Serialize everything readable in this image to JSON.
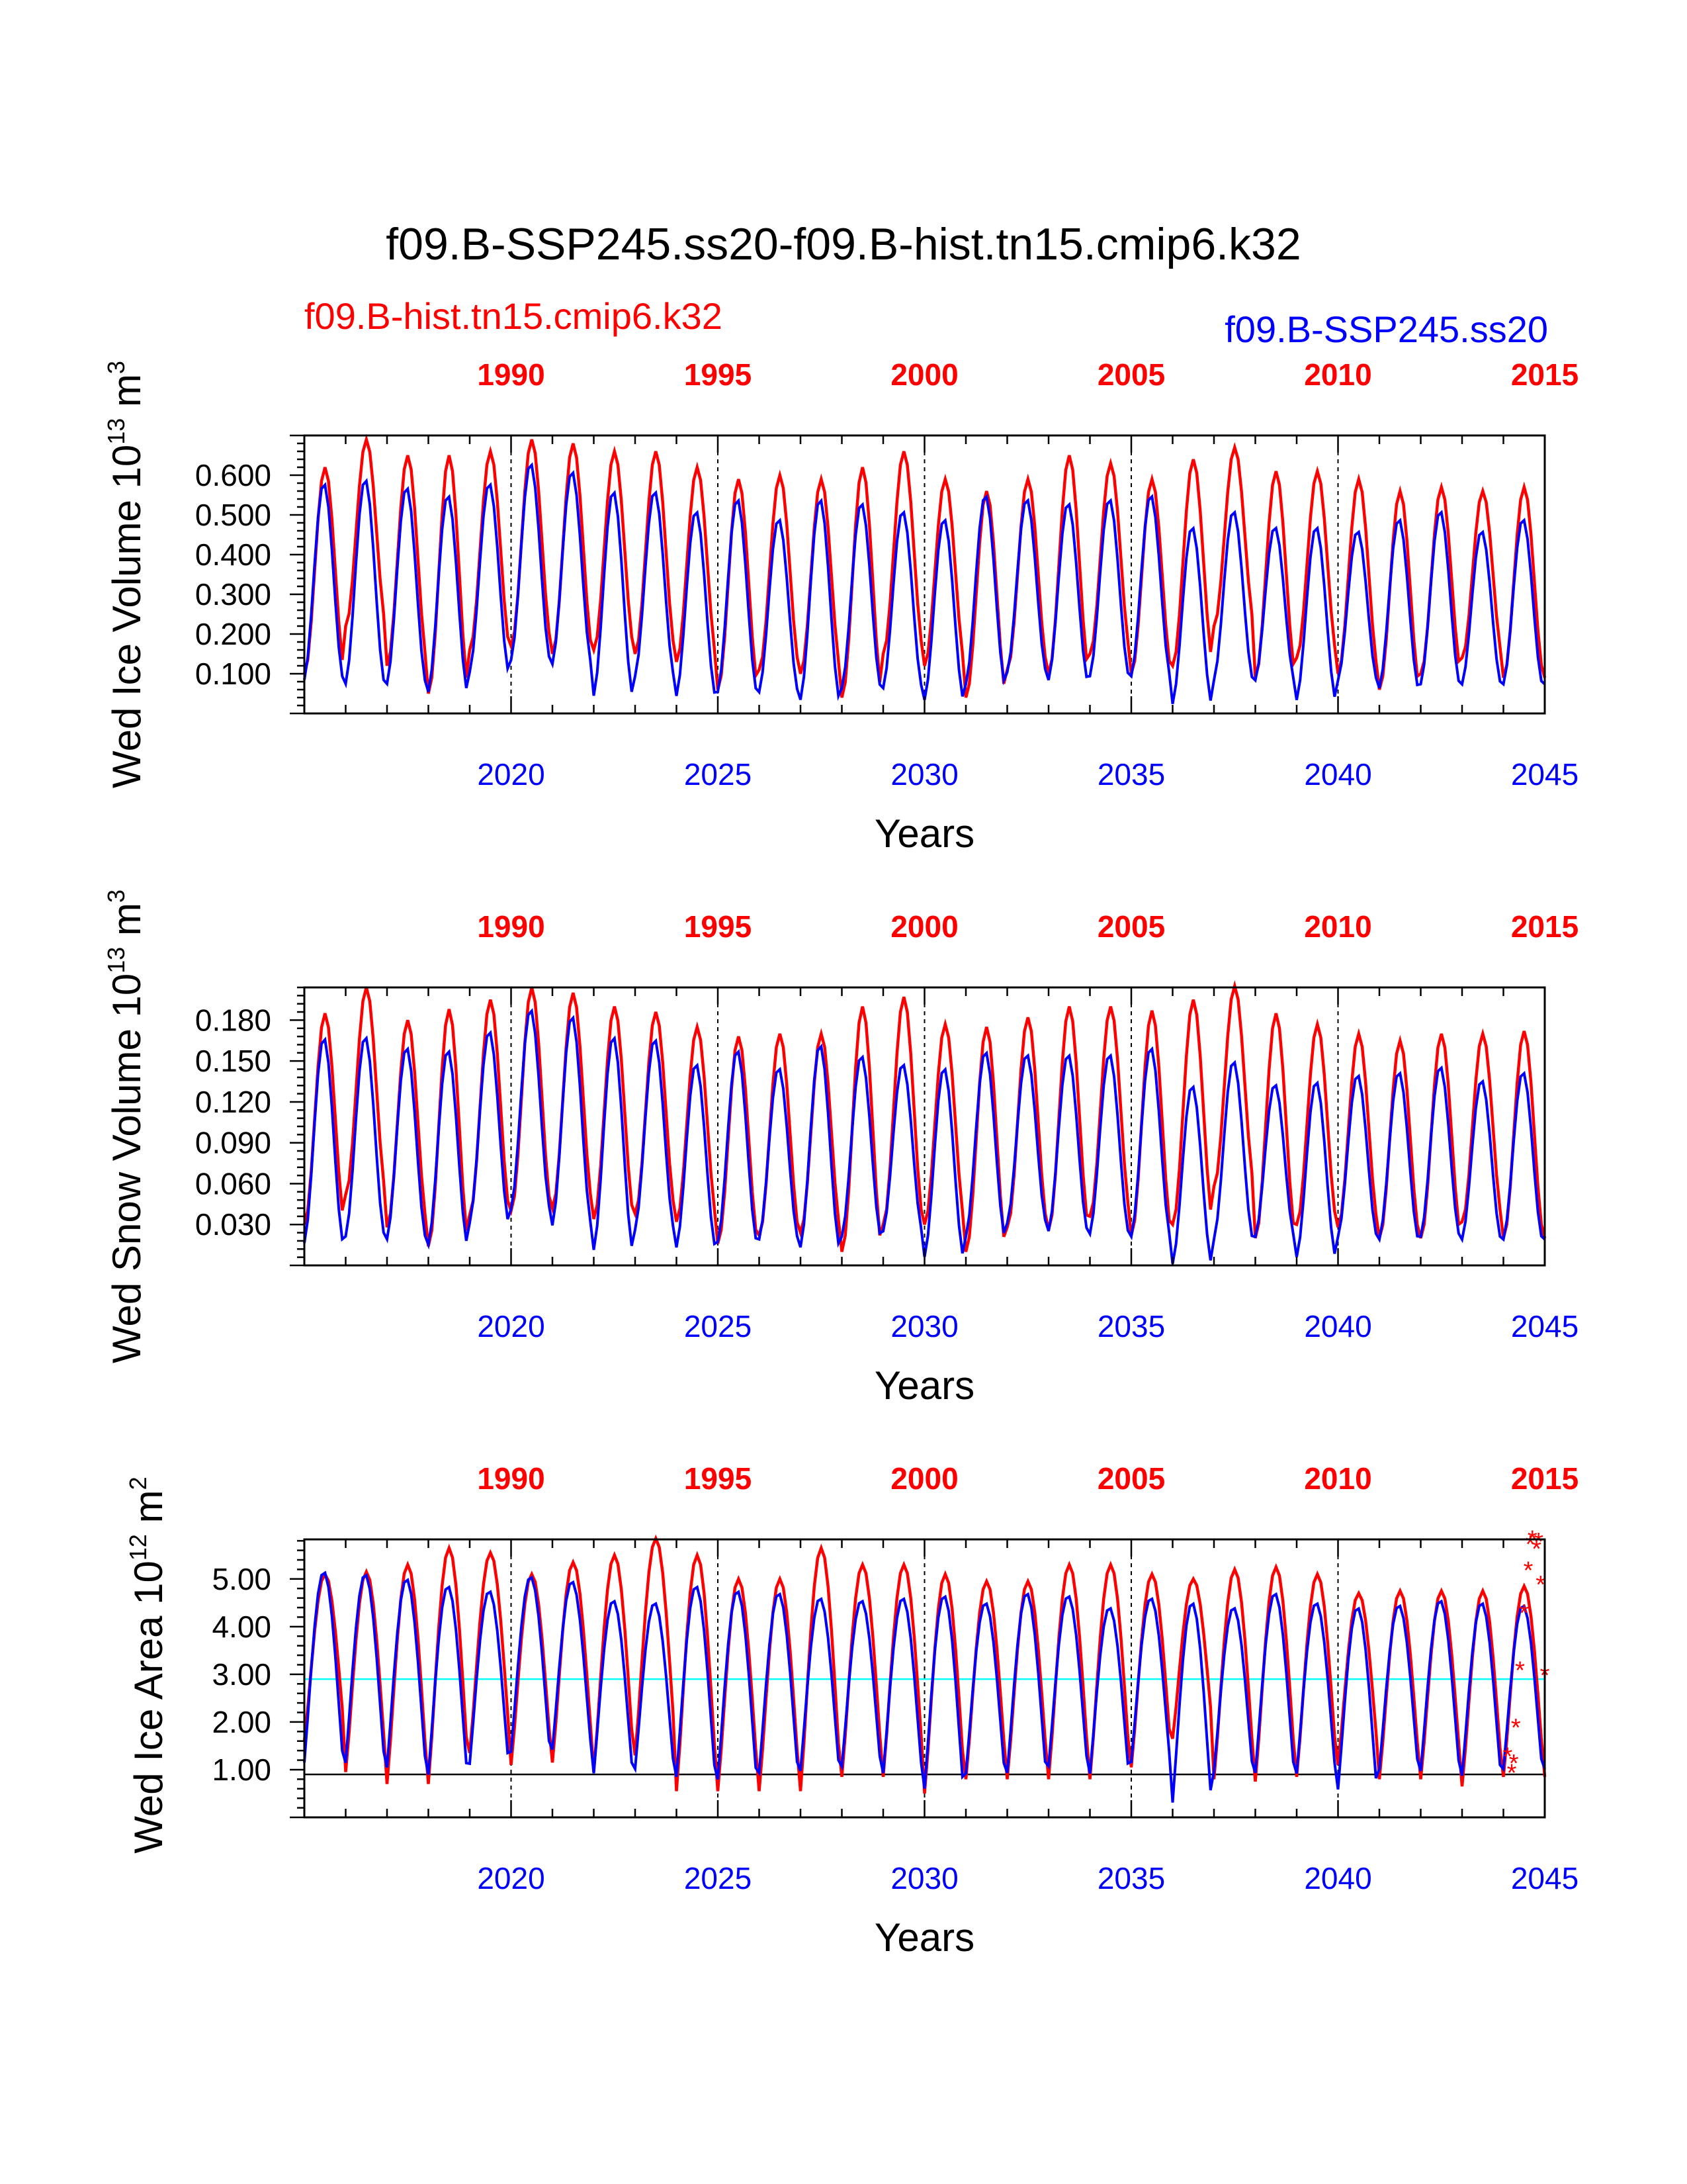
{
  "title": "f09.B-SSP245.ss20-f09.B-hist.tn15.cmip6.k32",
  "legend": {
    "left": {
      "text": "f09.B-hist.tn15.cmip6.k32",
      "color": "#ff0000"
    },
    "right": {
      "text": "f09.B-SSP245.ss20",
      "color": "#0000ff"
    }
  },
  "colors": {
    "red_series": "#ff0000",
    "blue_series": "#0000ff",
    "cyan_line": "#00ffff",
    "black_line": "#000000"
  },
  "chart_data": [
    {
      "type": "line",
      "ylabel_main": "Wed Ice Volume 10",
      "ylabel_exp": "13",
      "ylabel_unit": " m",
      "ylabel_unit_exp": "3",
      "xlabel": "Years",
      "xlim_bottom": [
        2015,
        2045
      ],
      "xlim_top": [
        1985,
        2015
      ],
      "bottom_ticks": [
        "2020",
        "2025",
        "2030",
        "2035",
        "2040",
        "2045"
      ],
      "top_ticks": [
        "1990",
        "1995",
        "2000",
        "2005",
        "2010",
        "2015"
      ],
      "ylim": [
        0.0,
        0.7
      ],
      "yticks": [
        "0.100",
        "0.200",
        "0.300",
        "0.400",
        "0.500",
        "0.600"
      ],
      "ytick_values": [
        0.1,
        0.2,
        0.3,
        0.4,
        0.5,
        0.6
      ],
      "grid": false,
      "season_shape": "pulse",
      "series": [
        {
          "name": "f09.B-hist.tn15.cmip6.k32",
          "color": "#ff0000",
          "annual_max": [
            0.62,
            0.69,
            0.65,
            0.65,
            0.66,
            0.69,
            0.68,
            0.66,
            0.66,
            0.62,
            0.59,
            0.6,
            0.59,
            0.62,
            0.66,
            0.59,
            0.56,
            0.59,
            0.65,
            0.63,
            0.59,
            0.64,
            0.67,
            0.61,
            0.61,
            0.59,
            0.56,
            0.57,
            0.56,
            0.57
          ],
          "annual_min": [
            0.1,
            0.22,
            0.12,
            0.05,
            0.16,
            0.17,
            0.15,
            0.16,
            0.15,
            0.13,
            0.06,
            0.11,
            0.1,
            0.04,
            0.15,
            0.12,
            0.04,
            0.11,
            0.1,
            0.15,
            0.1,
            0.12,
            0.22,
            0.09,
            0.14,
            0.1,
            0.06,
            0.1,
            0.14,
            0.09
          ]
        },
        {
          "name": "f09.B-SSP245.ss20",
          "color": "#0000ff",
          "annual_max": [
            0.58,
            0.59,
            0.57,
            0.55,
            0.58,
            0.63,
            0.61,
            0.56,
            0.56,
            0.51,
            0.54,
            0.49,
            0.54,
            0.53,
            0.51,
            0.49,
            0.55,
            0.54,
            0.53,
            0.54,
            0.55,
            0.47,
            0.51,
            0.47,
            0.47,
            0.46,
            0.49,
            0.51,
            0.46,
            0.49
          ],
          "annual_min": [
            0.08,
            0.07,
            0.07,
            0.05,
            0.1,
            0.13,
            0.12,
            0.04,
            0.09,
            0.04,
            0.05,
            0.05,
            0.03,
            0.06,
            0.06,
            0.03,
            0.07,
            0.1,
            0.08,
            0.09,
            0.09,
            0.02,
            0.08,
            0.08,
            0.03,
            0.08,
            0.06,
            0.07,
            0.07,
            0.07
          ]
        }
      ],
      "markers": []
    },
    {
      "type": "line",
      "ylabel_main": "Wed Snow Volume 10",
      "ylabel_exp": "13",
      "ylabel_unit": " m",
      "ylabel_unit_exp": "3",
      "xlabel": "Years",
      "xlim_bottom": [
        2015,
        2045
      ],
      "xlim_top": [
        1985,
        2015
      ],
      "bottom_ticks": [
        "2020",
        "2025",
        "2030",
        "2035",
        "2040",
        "2045"
      ],
      "top_ticks": [
        "1990",
        "1995",
        "2000",
        "2005",
        "2010",
        "2015"
      ],
      "ylim": [
        0.0,
        0.204
      ],
      "yticks": [
        "0.030",
        "0.060",
        "0.090",
        "0.120",
        "0.150",
        "0.180"
      ],
      "ytick_values": [
        0.03,
        0.06,
        0.09,
        0.12,
        0.15,
        0.18
      ],
      "grid": false,
      "season_shape": "pulse",
      "series": [
        {
          "name": "f09.B-hist.tn15.cmip6.k32",
          "color": "#ff0000",
          "annual_max": [
            0.185,
            0.204,
            0.18,
            0.188,
            0.195,
            0.204,
            0.2,
            0.19,
            0.186,
            0.175,
            0.168,
            0.17,
            0.17,
            0.19,
            0.197,
            0.177,
            0.175,
            0.182,
            0.19,
            0.19,
            0.187,
            0.195,
            0.205,
            0.185,
            0.177,
            0.17,
            0.165,
            0.17,
            0.17,
            0.172
          ],
          "annual_min": [
            0.03,
            0.052,
            0.028,
            0.014,
            0.037,
            0.04,
            0.042,
            0.034,
            0.038,
            0.032,
            0.016,
            0.022,
            0.024,
            0.01,
            0.03,
            0.03,
            0.01,
            0.028,
            0.026,
            0.036,
            0.022,
            0.03,
            0.058,
            0.02,
            0.03,
            0.028,
            0.02,
            0.02,
            0.032,
            0.02
          ]
        },
        {
          "name": "f09.B-SSP245.ss20",
          "color": "#0000ff",
          "annual_max": [
            0.167,
            0.168,
            0.16,
            0.158,
            0.172,
            0.188,
            0.183,
            0.168,
            0.166,
            0.148,
            0.158,
            0.145,
            0.162,
            0.154,
            0.148,
            0.145,
            0.157,
            0.155,
            0.155,
            0.155,
            0.16,
            0.132,
            0.15,
            0.133,
            0.135,
            0.14,
            0.142,
            0.146,
            0.136,
            0.142
          ],
          "annual_min": [
            0.015,
            0.02,
            0.018,
            0.014,
            0.03,
            0.04,
            0.028,
            0.01,
            0.025,
            0.012,
            0.016,
            0.018,
            0.012,
            0.02,
            0.024,
            0.005,
            0.02,
            0.03,
            0.024,
            0.022,
            0.02,
            0.0,
            0.018,
            0.02,
            0.005,
            0.02,
            0.018,
            0.02,
            0.018,
            0.018
          ]
        }
      ],
      "markers": []
    },
    {
      "type": "line",
      "ylabel_main": "Wed Ice Area 10",
      "ylabel_exp": "12",
      "ylabel_unit": " m",
      "ylabel_unit_exp": "2",
      "xlabel": "Years",
      "xlim_bottom": [
        2015,
        2045
      ],
      "xlim_top": [
        1985,
        2015
      ],
      "bottom_ticks": [
        "2020",
        "2025",
        "2030",
        "2035",
        "2040",
        "2045"
      ],
      "top_ticks": [
        "1990",
        "1995",
        "2000",
        "2005",
        "2010",
        "2015"
      ],
      "ylim": [
        0.0,
        5.83
      ],
      "yticks": [
        "1.00",
        "2.00",
        "3.00",
        "4.00",
        "5.00"
      ],
      "ytick_values": [
        1,
        2,
        3,
        4,
        5
      ],
      "grid": false,
      "season_shape": "plateau",
      "hlines": [
        {
          "y": 2.9,
          "color": "#00ffff"
        },
        {
          "y": 0.9,
          "color": "#000000"
        }
      ],
      "series": [
        {
          "name": "f09.B-hist.tn15.cmip6.k32",
          "color": "#ff0000",
          "annual_max": [
            5.1,
            5.15,
            5.3,
            5.65,
            5.55,
            5.1,
            5.35,
            5.5,
            5.85,
            5.5,
            5.0,
            5.0,
            5.65,
            5.3,
            5.3,
            5.1,
            4.95,
            4.95,
            5.3,
            5.3,
            5.1,
            5.0,
            5.2,
            5.25,
            5.1,
            4.7,
            4.75,
            4.75,
            4.75,
            4.85
          ],
          "annual_min": [
            1.6,
            0.95,
            0.7,
            0.7,
            1.35,
            1.1,
            1.15,
            0.95,
            1.3,
            0.55,
            0.55,
            0.55,
            0.55,
            0.85,
            0.85,
            0.5,
            0.8,
            0.8,
            0.8,
            0.8,
            1.05,
            1.65,
            0.8,
            0.75,
            0.85,
            1.1,
            0.8,
            0.8,
            0.65,
            0.85
          ]
        },
        {
          "name": "f09.B-SSP245.ss20",
          "color": "#0000ff",
          "annual_max": [
            5.15,
            5.1,
            5.0,
            4.85,
            4.75,
            5.05,
            4.95,
            4.55,
            4.5,
            4.85,
            4.75,
            4.7,
            4.6,
            4.55,
            4.6,
            4.65,
            4.5,
            4.7,
            4.65,
            4.4,
            4.6,
            4.5,
            4.4,
            4.7,
            4.5,
            4.4,
            4.45,
            4.55,
            4.5,
            4.45
          ],
          "annual_min": [
            0.9,
            0.9,
            0.8,
            0.65,
            0.9,
            1.15,
            1.2,
            0.7,
            0.8,
            0.6,
            0.55,
            0.7,
            0.75,
            0.85,
            0.7,
            0.35,
            0.7,
            0.7,
            0.85,
            0.7,
            0.95,
            0.05,
            0.75,
            0.7,
            0.7,
            0.35,
            0.8,
            0.75,
            0.65,
            0.8
          ]
        }
      ],
      "markers": [
        {
          "x": 2044.1,
          "y": 1.3
        },
        {
          "x": 2044.2,
          "y": 0.95
        },
        {
          "x": 2044.25,
          "y": 1.15
        },
        {
          "x": 2044.3,
          "y": 1.9
        },
        {
          "x": 2044.4,
          "y": 3.1
        },
        {
          "x": 2044.5,
          "y": 4.3
        },
        {
          "x": 2044.6,
          "y": 5.2
        },
        {
          "x": 2044.65,
          "y": 5.75
        },
        {
          "x": 2044.7,
          "y": 5.85
        },
        {
          "x": 2044.8,
          "y": 5.65
        },
        {
          "x": 2044.85,
          "y": 5.8
        },
        {
          "x": 2044.9,
          "y": 4.9
        },
        {
          "x": 2045.0,
          "y": 3.0
        }
      ]
    }
  ]
}
